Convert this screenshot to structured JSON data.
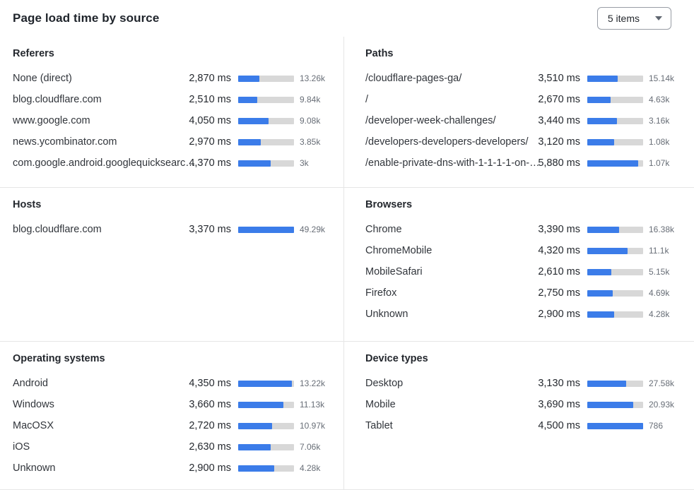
{
  "header": {
    "title": "Page load time by source",
    "items_dropdown": {
      "value": "5 items"
    }
  },
  "colors": {
    "bar_fill": "#3b7ce9",
    "bar_track": "#d8d8d8",
    "divider": "#e6e6e6",
    "count_text": "#686e77",
    "label_text": "#31353b"
  },
  "panels": [
    {
      "id": "referers",
      "title": "Referers",
      "scale_max": 7450,
      "rows": [
        {
          "label": "None (direct)",
          "ms": 2870,
          "ms_display": "2,870 ms",
          "count": "13.26k"
        },
        {
          "label": "blog.cloudflare.com",
          "ms": 2510,
          "ms_display": "2,510 ms",
          "count": "9.84k"
        },
        {
          "label": "www.google.com",
          "ms": 4050,
          "ms_display": "4,050 ms",
          "count": "9.08k"
        },
        {
          "label": "news.ycombinator.com",
          "ms": 2970,
          "ms_display": "2,970 ms",
          "count": "3.85k"
        },
        {
          "label": "com.google.android.googlequicksearc…",
          "ms": 4370,
          "ms_display": "4,370 ms",
          "count": "3k"
        }
      ]
    },
    {
      "id": "paths",
      "title": "Paths",
      "scale_max": 6450,
      "rows": [
        {
          "label": "/cloudflare-pages-ga/",
          "ms": 3510,
          "ms_display": "3,510 ms",
          "count": "15.14k"
        },
        {
          "label": "/",
          "ms": 2670,
          "ms_display": "2,670 ms",
          "count": "4.63k"
        },
        {
          "label": "/developer-week-challenges/",
          "ms": 3440,
          "ms_display": "3,440 ms",
          "count": "3.16k"
        },
        {
          "label": "/developers-developers-developers/",
          "ms": 3120,
          "ms_display": "3,120 ms",
          "count": "1.08k"
        },
        {
          "label": "/enable-private-dns-with-1-1-1-1-on-…",
          "ms": 5880,
          "ms_display": "5,880 ms",
          "count": "1.07k"
        }
      ]
    },
    {
      "id": "hosts",
      "title": "Hosts",
      "scale_max": 3370,
      "rows": [
        {
          "label": "blog.cloudflare.com",
          "ms": 3370,
          "ms_display": "3,370 ms",
          "count": "49.29k"
        }
      ]
    },
    {
      "id": "browsers",
      "title": "Browsers",
      "scale_max": 6000,
      "rows": [
        {
          "label": "Chrome",
          "ms": 3390,
          "ms_display": "3,390 ms",
          "count": "16.38k"
        },
        {
          "label": "ChromeMobile",
          "ms": 4320,
          "ms_display": "4,320 ms",
          "count": "11.1k"
        },
        {
          "label": "MobileSafari",
          "ms": 2610,
          "ms_display": "2,610 ms",
          "count": "5.15k"
        },
        {
          "label": "Firefox",
          "ms": 2750,
          "ms_display": "2,750 ms",
          "count": "4.69k"
        },
        {
          "label": "Unknown",
          "ms": 2900,
          "ms_display": "2,900 ms",
          "count": "4.28k"
        }
      ]
    },
    {
      "id": "operating-systems",
      "title": "Operating systems",
      "scale_max": 4500,
      "rows": [
        {
          "label": "Android",
          "ms": 4350,
          "ms_display": "4,350 ms",
          "count": "13.22k"
        },
        {
          "label": "Windows",
          "ms": 3660,
          "ms_display": "3,660 ms",
          "count": "11.13k"
        },
        {
          "label": "MacOSX",
          "ms": 2720,
          "ms_display": "2,720 ms",
          "count": "10.97k"
        },
        {
          "label": "iOS",
          "ms": 2630,
          "ms_display": "2,630 ms",
          "count": "7.06k"
        },
        {
          "label": "Unknown",
          "ms": 2900,
          "ms_display": "2,900 ms",
          "count": "4.28k"
        }
      ]
    },
    {
      "id": "device-types",
      "title": "Device types",
      "scale_max": 4500,
      "rows": [
        {
          "label": "Desktop",
          "ms": 3130,
          "ms_display": "3,130 ms",
          "count": "27.58k"
        },
        {
          "label": "Mobile",
          "ms": 3690,
          "ms_display": "3,690 ms",
          "count": "20.93k"
        },
        {
          "label": "Tablet",
          "ms": 4500,
          "ms_display": "4,500 ms",
          "count": "786"
        }
      ]
    }
  ],
  "chart_data": {
    "type": "bar",
    "title": "Page load time by source",
    "note": "six horizontal-bar panels; bar length = ms relative to panel scale_max; see panels[]"
  }
}
